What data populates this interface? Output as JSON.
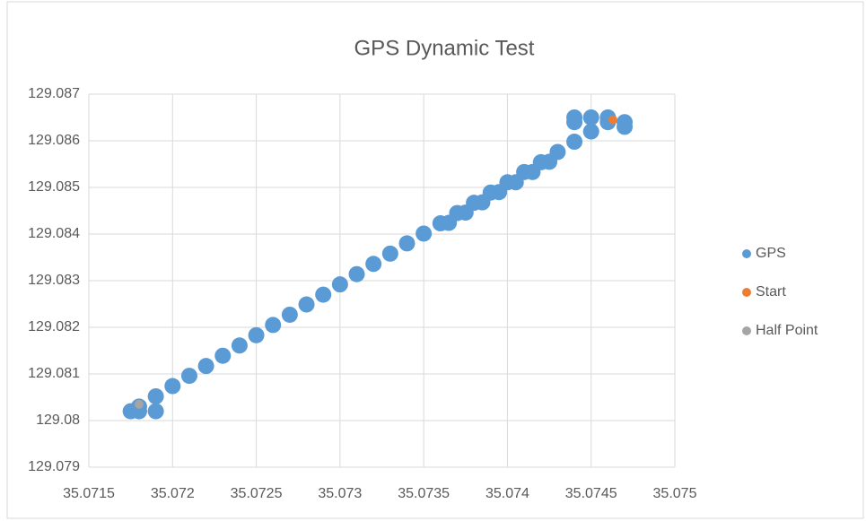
{
  "chart_data": {
    "type": "scatter",
    "title": "GPS Dynamic Test",
    "xlim": [
      35.0715,
      35.075
    ],
    "xticks": [
      35.0715,
      35.072,
      35.0725,
      35.073,
      35.0735,
      35.074,
      35.0745,
      35.075
    ],
    "ylim": [
      129.079,
      129.087
    ],
    "yticks": [
      129.079,
      129.08,
      129.081,
      129.082,
      129.083,
      129.084,
      129.085,
      129.086,
      129.087
    ],
    "grid": true,
    "legend": "right",
    "series": [
      {
        "name": "GPS",
        "color": "#5b9bd5",
        "x": [
          35.07175,
          35.0718,
          35.0719,
          35.0718,
          35.0719,
          35.072,
          35.0721,
          35.0722,
          35.0723,
          35.0724,
          35.0725,
          35.0726,
          35.0727,
          35.0728,
          35.0729,
          35.073,
          35.0731,
          35.0732,
          35.0733,
          35.0734,
          35.0735,
          35.0736,
          35.0737,
          35.0738,
          35.0739,
          35.074,
          35.0741,
          35.0742,
          35.0743,
          35.0744,
          35.0745,
          35.07365,
          35.07375,
          35.07385,
          35.07395,
          35.07405,
          35.07415,
          35.07425,
          35.0746,
          35.0747,
          35.0747,
          35.0746,
          35.0745,
          35.0744,
          35.0744
        ],
        "values": [
          129.0802,
          129.0802,
          129.0802,
          129.0803,
          129.08052,
          129.08074,
          129.08096,
          129.08117,
          129.08139,
          129.08161,
          129.08183,
          129.08205,
          129.08227,
          129.08249,
          129.0827,
          129.08292,
          129.08314,
          129.08336,
          129.08358,
          129.0838,
          129.08401,
          129.08423,
          129.08445,
          129.08467,
          129.08489,
          129.08511,
          129.08533,
          129.08554,
          129.08576,
          129.08598,
          129.0862,
          129.08424,
          129.08446,
          129.08468,
          129.0849,
          129.08511,
          129.08533,
          129.08555,
          129.0864,
          129.0863,
          129.0864,
          129.0865,
          129.0865,
          129.0865,
          129.0864
        ]
      },
      {
        "name": "Start",
        "color": "#ed7d31",
        "x": [
          35.07463
        ],
        "values": [
          129.08645
        ]
      },
      {
        "name": "Half Point",
        "color": "#a5a5a5",
        "x": [
          35.0718
        ],
        "values": [
          129.08035
        ]
      }
    ]
  }
}
